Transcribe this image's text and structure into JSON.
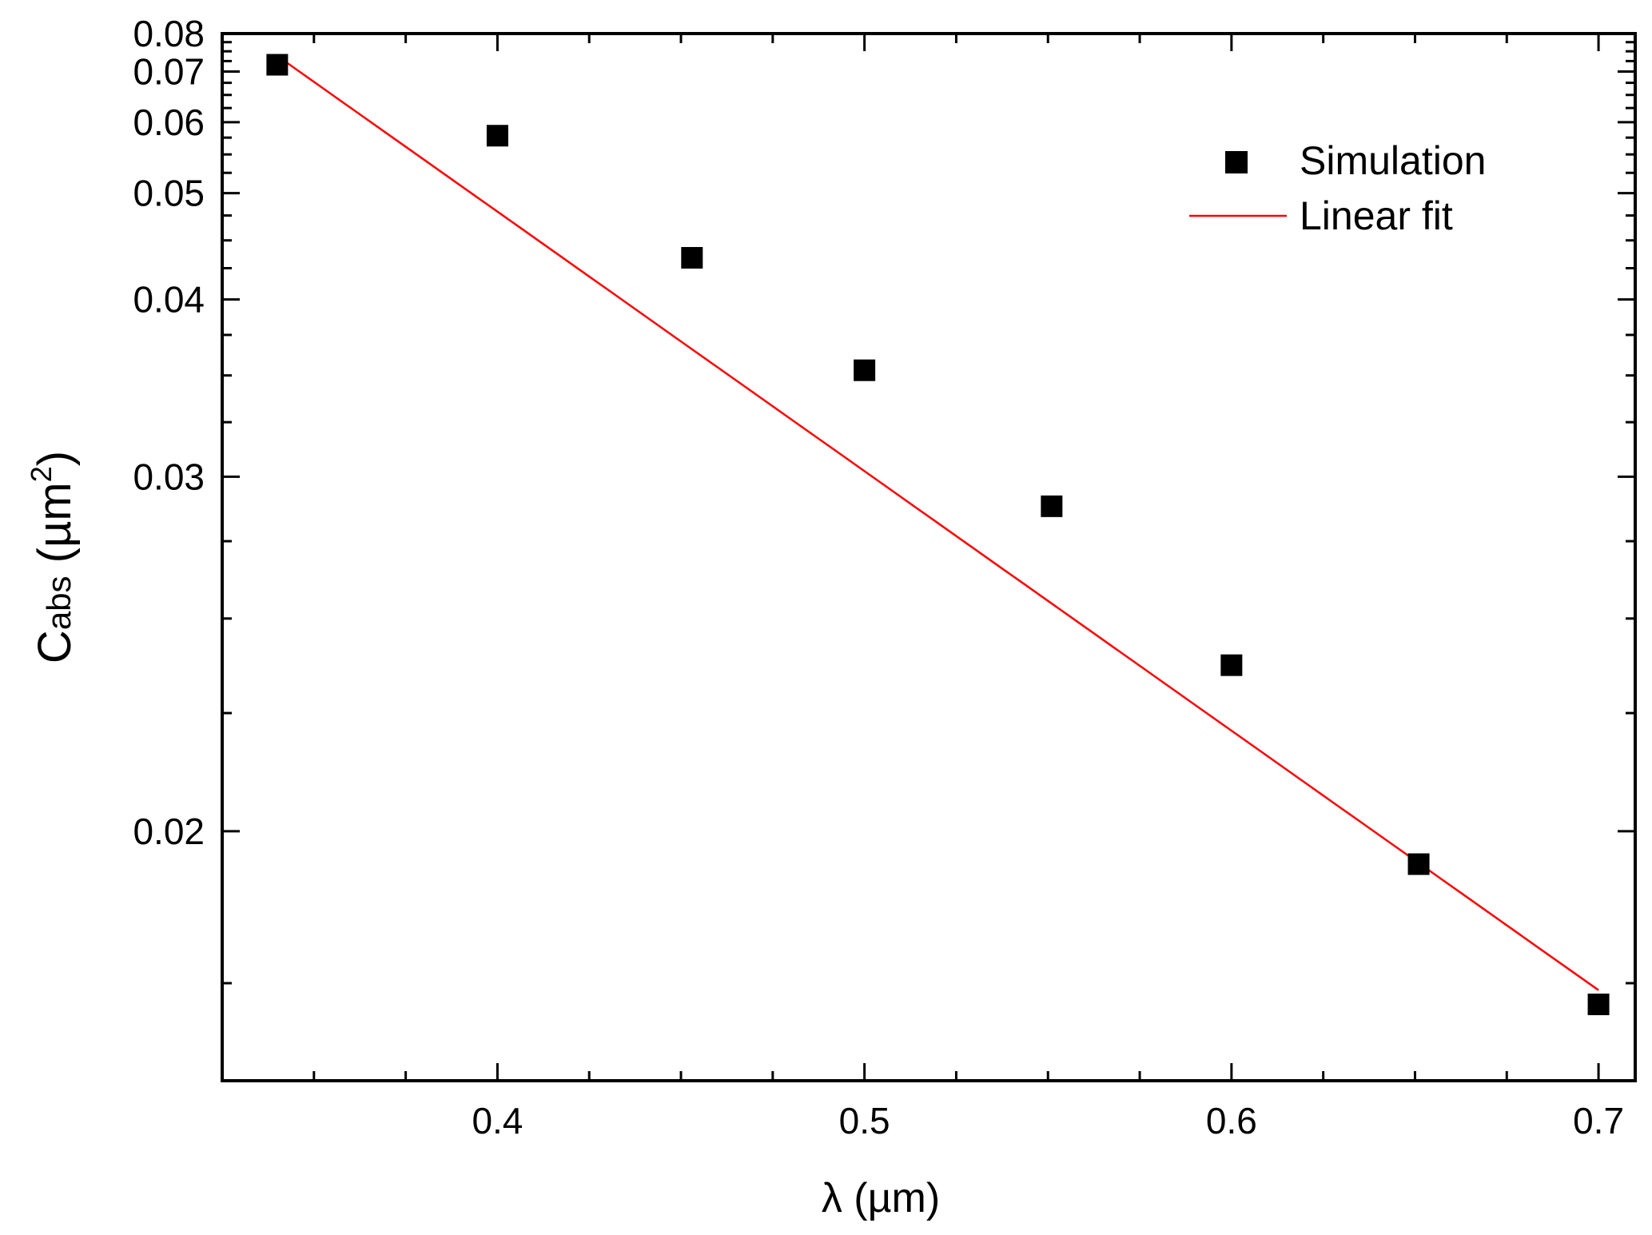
{
  "chart_data": {
    "type": "scatter",
    "xlabel": "λ (µm)",
    "ylabel": {
      "main": "C",
      "sub": "abs",
      "unit": " (µm",
      "sup": "2",
      "close": ")"
    },
    "xlim": [
      0.325,
      0.71
    ],
    "ylim": [
      0.0162,
      0.08
    ],
    "yscale": "reciprocal",
    "x_ticks": [
      0.4,
      0.5,
      0.6,
      0.7
    ],
    "x_tick_labels": [
      "0.4",
      "0.5",
      "0.6",
      "0.7"
    ],
    "x_minor_ticks": [
      0.35,
      0.375,
      0.425,
      0.45,
      0.475,
      0.525,
      0.55,
      0.575,
      0.625,
      0.65,
      0.675
    ],
    "y_ticks": [
      0.02,
      0.03,
      0.04,
      0.05,
      0.06,
      0.07,
      0.08
    ],
    "y_tick_labels": [
      "0.02",
      "0.03",
      "0.04",
      "0.05",
      "0.06",
      "0.07",
      "0.08"
    ],
    "y_minor_ticks": [
      0.0175,
      0.0225,
      0.025,
      0.0275,
      0.0325,
      0.035,
      0.0375,
      0.0425,
      0.045,
      0.0475,
      0.0525,
      0.055,
      0.0575,
      0.0625,
      0.065,
      0.0675,
      0.0725,
      0.075,
      0.0775
    ],
    "grid": false,
    "legend_position": "top-right",
    "series": [
      {
        "name": "Simulation",
        "type": "scatter",
        "marker": "square",
        "color": "#000000",
        "x": [
          0.34,
          0.4,
          0.453,
          0.5,
          0.551,
          0.6,
          0.651,
          0.7
        ],
        "y": [
          0.0716,
          0.0578,
          0.0434,
          0.0353,
          0.0288,
          0.0237,
          0.0194,
          0.0172
        ]
      },
      {
        "name": "Linear fit",
        "type": "line",
        "color": "#ff0000",
        "x": [
          0.34,
          0.7
        ],
        "y": [
          0.0738,
          0.0174
        ]
      }
    ]
  }
}
